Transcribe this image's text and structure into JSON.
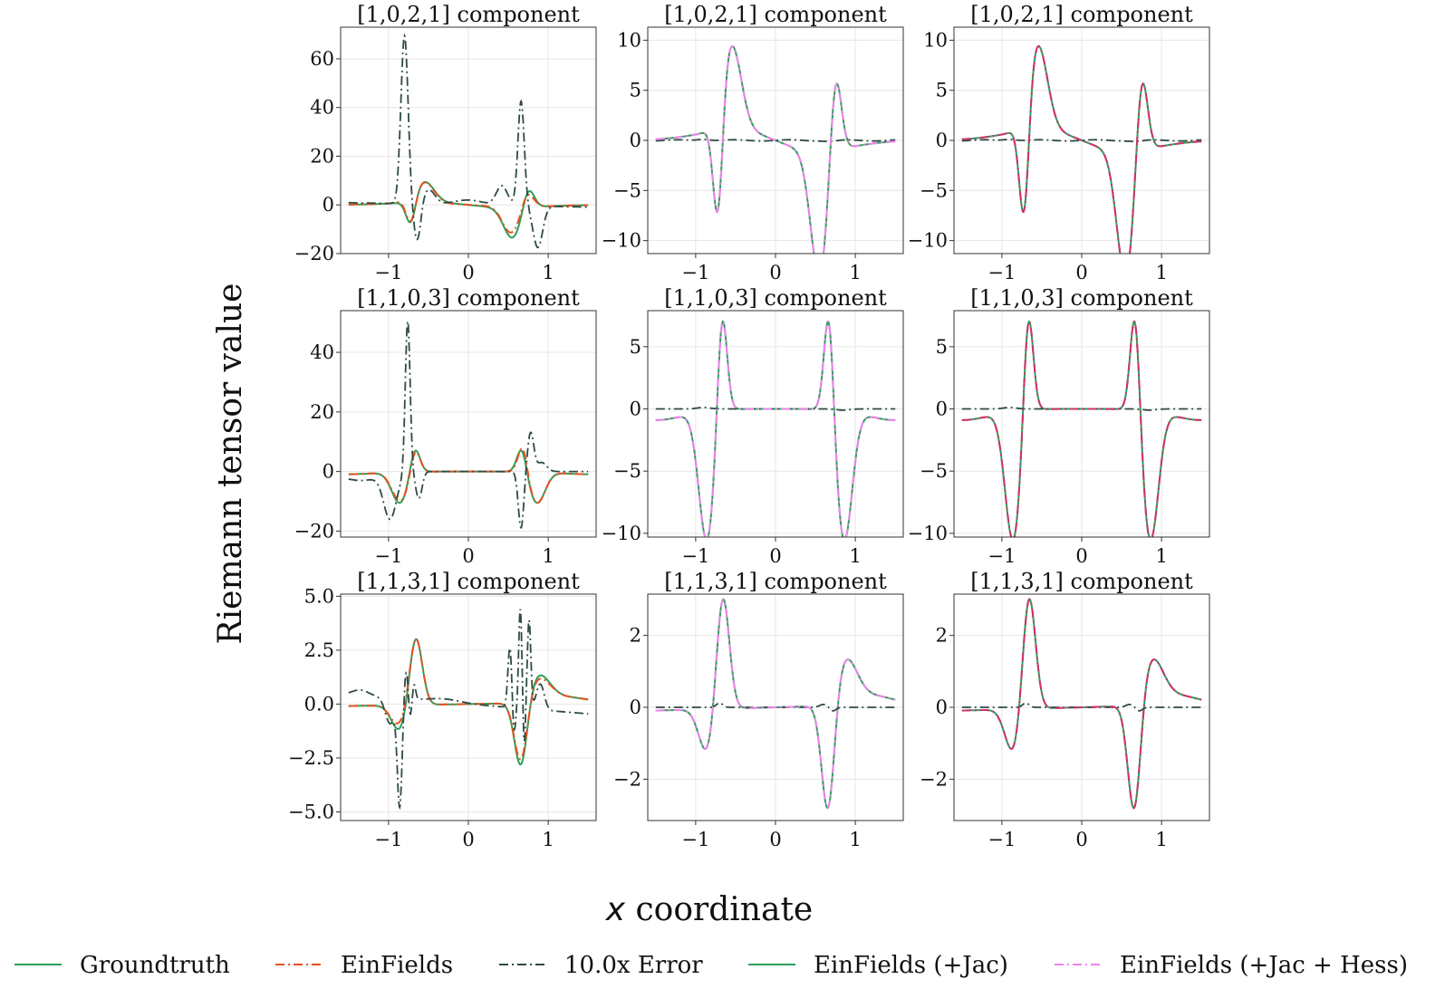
{
  "figure": {
    "ylabel": "Riemann tensor value",
    "xlabel_var": "x",
    "xlabel_rest": " coordinate",
    "colors": {
      "groundtruth": "#2ca05a",
      "einfields": "#e8501e",
      "error": "#2f4a44",
      "jac": "#2ca05a",
      "hess": "#ee82ee",
      "hess_overlay": "#d0306a"
    }
  },
  "legend": [
    {
      "key": "groundtruth",
      "label": "Groundtruth",
      "style": "solid"
    },
    {
      "key": "einfields",
      "label": "EinFields",
      "style": "dashdot"
    },
    {
      "key": "error",
      "label": "10.0x Error",
      "style": "dashdot"
    },
    {
      "key": "jac",
      "label": "EinFields (+Jac)",
      "style": "solid"
    },
    {
      "key": "hess",
      "label": "EinFields (+Jac + Hess)",
      "style": "dashdot"
    }
  ],
  "chart_data": [
    {
      "type": "line",
      "title": "[1,0,2,1] component",
      "row": 0,
      "col": 0,
      "variant": "base",
      "comp": "c021",
      "xlim": [
        -1.6,
        1.6
      ],
      "ylim": [
        -20,
        73
      ],
      "yticks": [
        -20,
        0,
        20,
        40,
        60
      ],
      "ytick_labels": [
        "−20",
        "0",
        "20",
        "40",
        "60"
      ],
      "xticks": [
        -1,
        0,
        1
      ],
      "xtick_labels": [
        "−1",
        "0",
        "1"
      ],
      "series": [
        "Groundtruth",
        "EinFields",
        "10.0x Error"
      ]
    },
    {
      "type": "line",
      "title": "[1,0,2,1] component",
      "row": 0,
      "col": 1,
      "variant": "jac",
      "comp": "c021",
      "xlim": [
        -1.6,
        1.6
      ],
      "ylim": [
        -11.3,
        11.3
      ],
      "yticks": [
        -10,
        -5,
        0,
        5,
        10
      ],
      "ytick_labels": [
        "−10",
        "−5",
        "0",
        "5",
        "10"
      ],
      "xticks": [
        -1,
        0,
        1
      ],
      "xtick_labels": [
        "−1",
        "0",
        "1"
      ],
      "series": [
        "Groundtruth",
        "EinFields (+Jac)",
        "10.0x Error"
      ]
    },
    {
      "type": "line",
      "title": "[1,0,2,1] component",
      "row": 0,
      "col": 2,
      "variant": "hess",
      "comp": "c021",
      "xlim": [
        -1.6,
        1.6
      ],
      "ylim": [
        -11.3,
        11.3
      ],
      "yticks": [
        -10,
        -5,
        0,
        5,
        10
      ],
      "ytick_labels": [
        "−10",
        "−5",
        "0",
        "5",
        "10"
      ],
      "xticks": [
        -1,
        0,
        1
      ],
      "xtick_labels": [
        "−1",
        "0",
        "1"
      ],
      "series": [
        "Groundtruth",
        "EinFields (+Jac + Hess)",
        "10.0x Error"
      ]
    },
    {
      "type": "line",
      "title": "[1,1,0,3] component",
      "row": 1,
      "col": 0,
      "variant": "base",
      "comp": "c103",
      "xlim": [
        -1.6,
        1.6
      ],
      "ylim": [
        -22,
        54
      ],
      "yticks": [
        -20,
        0,
        20,
        40
      ],
      "ytick_labels": [
        "−20",
        "0",
        "20",
        "40"
      ],
      "xticks": [
        -1,
        0,
        1
      ],
      "xtick_labels": [
        "−1",
        "0",
        "1"
      ],
      "series": [
        "Groundtruth",
        "EinFields",
        "10.0x Error"
      ]
    },
    {
      "type": "line",
      "title": "[1,1,0,3] component",
      "row": 1,
      "col": 1,
      "variant": "jac",
      "comp": "c103",
      "xlim": [
        -1.6,
        1.6
      ],
      "ylim": [
        -10.3,
        7.9
      ],
      "yticks": [
        -10,
        -5,
        0,
        5
      ],
      "ytick_labels": [
        "−10",
        "−5",
        "0",
        "5"
      ],
      "xticks": [
        -1,
        0,
        1
      ],
      "xtick_labels": [
        "−1",
        "0",
        "1"
      ],
      "series": [
        "Groundtruth",
        "EinFields (+Jac)",
        "10.0x Error"
      ]
    },
    {
      "type": "line",
      "title": "[1,1,0,3] component",
      "row": 1,
      "col": 2,
      "variant": "hess",
      "comp": "c103",
      "xlim": [
        -1.6,
        1.6
      ],
      "ylim": [
        -10.3,
        7.9
      ],
      "yticks": [
        -10,
        -5,
        0,
        5
      ],
      "ytick_labels": [
        "−10",
        "−5",
        "0",
        "5"
      ],
      "xticks": [
        -1,
        0,
        1
      ],
      "xtick_labels": [
        "−1",
        "0",
        "1"
      ],
      "series": [
        "Groundtruth",
        "EinFields (+Jac + Hess)",
        "10.0x Error"
      ]
    },
    {
      "type": "line",
      "title": "[1,1,3,1] component",
      "row": 2,
      "col": 0,
      "variant": "base",
      "comp": "c131",
      "xlim": [
        -1.6,
        1.6
      ],
      "ylim": [
        -5.4,
        5.1
      ],
      "yticks": [
        -5,
        -2.5,
        0,
        2.5,
        5
      ],
      "ytick_labels": [
        "−5.0",
        "−2.5",
        "0.0",
        "2.5",
        "5.0"
      ],
      "xticks": [
        -1,
        0,
        1
      ],
      "xtick_labels": [
        "−1",
        "0",
        "1"
      ],
      "series": [
        "Groundtruth",
        "EinFields",
        "10.0x Error"
      ]
    },
    {
      "type": "line",
      "title": "[1,1,3,1] component",
      "row": 2,
      "col": 1,
      "variant": "jac",
      "comp": "c131",
      "xlim": [
        -1.6,
        1.6
      ],
      "ylim": [
        -3.15,
        3.15
      ],
      "yticks": [
        -2,
        0,
        2
      ],
      "ytick_labels": [
        "−2",
        "0",
        "2"
      ],
      "xticks": [
        -1,
        0,
        1
      ],
      "xtick_labels": [
        "−1",
        "0",
        "1"
      ],
      "series": [
        "Groundtruth",
        "EinFields (+Jac)",
        "10.0x Error"
      ]
    },
    {
      "type": "line",
      "title": "[1,1,3,1] component",
      "row": 2,
      "col": 2,
      "variant": "hess",
      "comp": "c131",
      "xlim": [
        -1.6,
        1.6
      ],
      "ylim": [
        -3.15,
        3.15
      ],
      "yticks": [
        -2,
        0,
        2
      ],
      "ytick_labels": [
        "−2",
        "0",
        "2"
      ],
      "xticks": [
        -1,
        0,
        1
      ],
      "xtick_labels": [
        "−1",
        "0",
        "1"
      ],
      "series": [
        "Groundtruth",
        "EinFields (+Jac + Hess)",
        "10.0x Error"
      ]
    }
  ]
}
